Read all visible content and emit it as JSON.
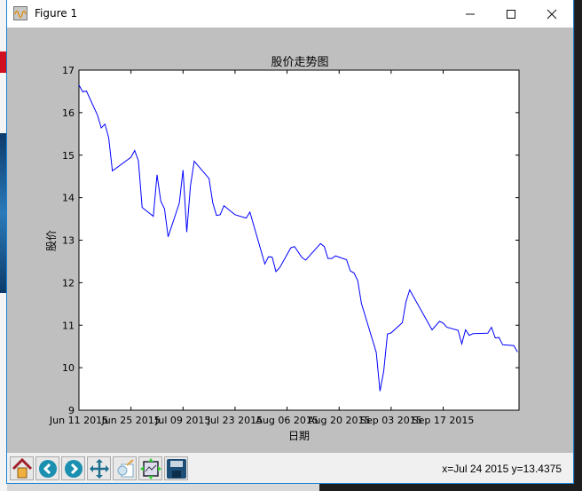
{
  "window": {
    "title": "Figure 1",
    "minimize_icon": "minimize-icon",
    "maximize_icon": "maximize-icon",
    "close_icon": "close-icon"
  },
  "toolbar": {
    "buttons": [
      {
        "name": "home",
        "icon": "home-icon"
      },
      {
        "name": "back",
        "icon": "arrow-left-icon"
      },
      {
        "name": "forward",
        "icon": "arrow-right-icon"
      },
      {
        "name": "pan",
        "icon": "move-arrows-icon"
      },
      {
        "name": "zoom",
        "icon": "zoom-rect-icon"
      },
      {
        "name": "subplots",
        "icon": "subplots-config-icon"
      },
      {
        "name": "save",
        "icon": "floppy-disk-icon"
      }
    ],
    "status": "x=Jul 24 2015 y=13.4375"
  },
  "chart_data": {
    "type": "line",
    "title": "股价走势图",
    "xlabel": "日期",
    "ylabel": "股价",
    "xlim": [
      "2015-06-11",
      "2015-10-07"
    ],
    "ylim": [
      9,
      17
    ],
    "grid": false,
    "line_color": "#0000ff",
    "yticks": [
      9,
      10,
      11,
      12,
      13,
      14,
      15,
      16,
      17
    ],
    "xticks": [
      {
        "date": "2015-06-11",
        "label": "Jun 11 2015"
      },
      {
        "date": "2015-06-25",
        "label": "Jun 25 2015"
      },
      {
        "date": "2015-07-09",
        "label": "Jul 09 2015"
      },
      {
        "date": "2015-07-23",
        "label": "Jul 23 2015"
      },
      {
        "date": "2015-08-06",
        "label": "Aug 06 2015"
      },
      {
        "date": "2015-08-20",
        "label": "Aug 20 2015"
      },
      {
        "date": "2015-09-03",
        "label": "Sep 03 2015"
      },
      {
        "date": "2015-09-17",
        "label": "Sep 17 2015"
      }
    ],
    "x": [
      "2015-06-11",
      "2015-06-12",
      "2015-06-13",
      "2015-06-16",
      "2015-06-17",
      "2015-06-18",
      "2015-06-19",
      "2015-06-20",
      "2015-06-25",
      "2015-06-26",
      "2015-06-27",
      "2015-06-28",
      "2015-07-01",
      "2015-07-02",
      "2015-07-03",
      "2015-07-04",
      "2015-07-05",
      "2015-07-08",
      "2015-07-09",
      "2015-07-10",
      "2015-07-11",
      "2015-07-12",
      "2015-07-16",
      "2015-07-17",
      "2015-07-18",
      "2015-07-19",
      "2015-07-20",
      "2015-07-23",
      "2015-07-26",
      "2015-07-27",
      "2015-07-31",
      "2015-08-01",
      "2015-08-02",
      "2015-08-03",
      "2015-08-04",
      "2015-08-07",
      "2015-08-08",
      "2015-08-10",
      "2015-08-11",
      "2015-08-15",
      "2015-08-16",
      "2015-08-17",
      "2015-08-18",
      "2015-08-19",
      "2015-08-22",
      "2015-08-23",
      "2015-08-24",
      "2015-08-25",
      "2015-08-26",
      "2015-08-30",
      "2015-08-31",
      "2015-09-01",
      "2015-09-02",
      "2015-09-03",
      "2015-09-06",
      "2015-09-07",
      "2015-09-08",
      "2015-09-14",
      "2015-09-16",
      "2015-09-17",
      "2015-09-18",
      "2015-09-21",
      "2015-09-22",
      "2015-09-23",
      "2015-09-24",
      "2015-09-25",
      "2015-09-29",
      "2015-09-30",
      "2015-10-01",
      "2015-10-02",
      "2015-10-03",
      "2015-10-06",
      "2015-10-07"
    ],
    "y": [
      16.65,
      16.49,
      16.51,
      15.94,
      15.64,
      15.73,
      15.41,
      14.63,
      14.95,
      15.11,
      14.87,
      13.77,
      13.56,
      14.54,
      13.92,
      13.74,
      13.08,
      13.87,
      14.65,
      13.19,
      14.28,
      14.86,
      14.45,
      13.88,
      13.58,
      13.6,
      13.81,
      13.6,
      13.52,
      13.66,
      12.44,
      12.61,
      12.6,
      12.26,
      12.35,
      12.82,
      12.85,
      12.59,
      12.53,
      12.92,
      12.85,
      12.57,
      12.57,
      12.63,
      12.54,
      12.28,
      12.23,
      12.05,
      11.51,
      10.36,
      9.45,
      9.92,
      10.79,
      10.82,
      11.06,
      11.55,
      11.83,
      10.89,
      11.09,
      11.05,
      10.95,
      10.88,
      10.56,
      10.89,
      10.76,
      10.8,
      10.81,
      10.95,
      10.7,
      10.71,
      10.54,
      10.52,
      10.37
    ]
  }
}
